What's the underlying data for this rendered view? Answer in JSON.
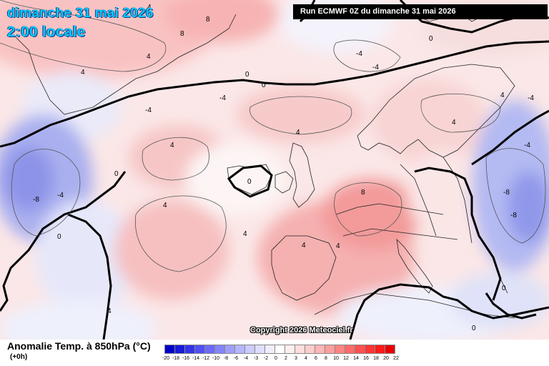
{
  "header": {
    "date_line": "dimanche 31 mai 2026",
    "time_line": "2:00 locale",
    "run_info": "Run ECMWF 0Z du dimanche 31 mai 2026"
  },
  "map": {
    "type": "weather-map",
    "region": "North Atlantic and Europe",
    "field": "850hPa temperature anomaly",
    "contour_labels": [
      "0",
      "4",
      "8",
      "-4",
      "-8"
    ]
  },
  "copyright": "Copyright 2026 Meteociel.fr",
  "legend": {
    "title": "Anomalie Temp. à 850hPa (°C)",
    "subtitle": "(+0h)",
    "ticks": [
      "-20",
      "-18",
      "-16",
      "-14",
      "-12",
      "-10",
      "-8",
      "-6",
      "-4",
      "-3",
      "-2",
      "0",
      "2",
      "3",
      "4",
      "6",
      "8",
      "10",
      "12",
      "14",
      "16",
      "18",
      "20",
      "22"
    ],
    "colors": [
      "#0000c8",
      "#1a1ad8",
      "#3434e6",
      "#5050f0",
      "#6a6af6",
      "#8484fa",
      "#9e9efc",
      "#b6b6fd",
      "#ccccfe",
      "#dedeff",
      "#eeeeff",
      "#ffffff",
      "#ffeeee",
      "#ffdede",
      "#ffcccc",
      "#ffb6b6",
      "#ff9e9e",
      "#ff8484",
      "#ff6a6a",
      "#ff5050",
      "#ff3434",
      "#ff1a1a",
      "#e60000"
    ]
  }
}
